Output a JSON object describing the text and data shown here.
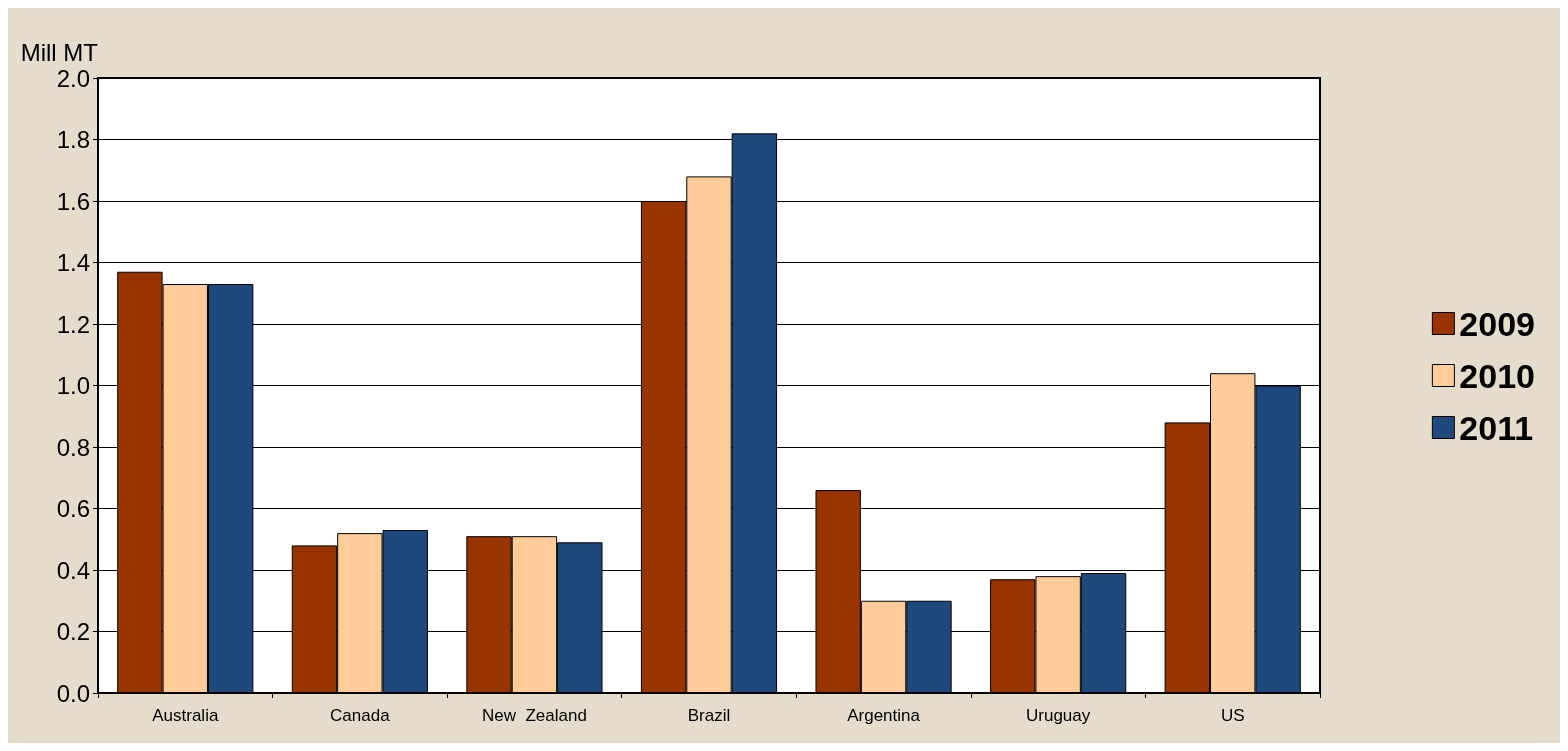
{
  "chart_data": {
    "type": "bar",
    "ylabel": "Mill MT",
    "categories": [
      "Australia",
      "Canada",
      "New  Zealand",
      "Brazil",
      "Argentina",
      "Uruguay",
      "US"
    ],
    "series": [
      {
        "name": "2009",
        "color": "#993300",
        "values": [
          1.37,
          0.48,
          0.51,
          1.6,
          0.66,
          0.37,
          0.88
        ]
      },
      {
        "name": "2010",
        "color": "#ffcc99",
        "values": [
          1.33,
          0.52,
          0.51,
          1.68,
          0.3,
          0.38,
          1.04
        ]
      },
      {
        "name": "2011",
        "color": "#1f497d",
        "values": [
          1.33,
          0.53,
          0.49,
          1.82,
          0.3,
          0.39,
          1.0
        ]
      }
    ],
    "ylim": [
      0,
      2
    ],
    "yticks": [
      {
        "value": 0,
        "label": "0.0"
      },
      {
        "value": 0.2,
        "label": "0.2"
      },
      {
        "value": 0.4,
        "label": "0.4"
      },
      {
        "value": 0.6,
        "label": "0.6"
      },
      {
        "value": 0.8,
        "label": "0.8"
      },
      {
        "value": 1,
        "label": "1.0"
      },
      {
        "value": 1.2,
        "label": "1.2"
      },
      {
        "value": 1.4,
        "label": "1.4"
      },
      {
        "value": 1.6,
        "label": "1.6"
      },
      {
        "value": 1.8,
        "label": "1.8"
      },
      {
        "value": 2,
        "label": "2.0"
      }
    ],
    "grid": "y",
    "legend": "right"
  }
}
